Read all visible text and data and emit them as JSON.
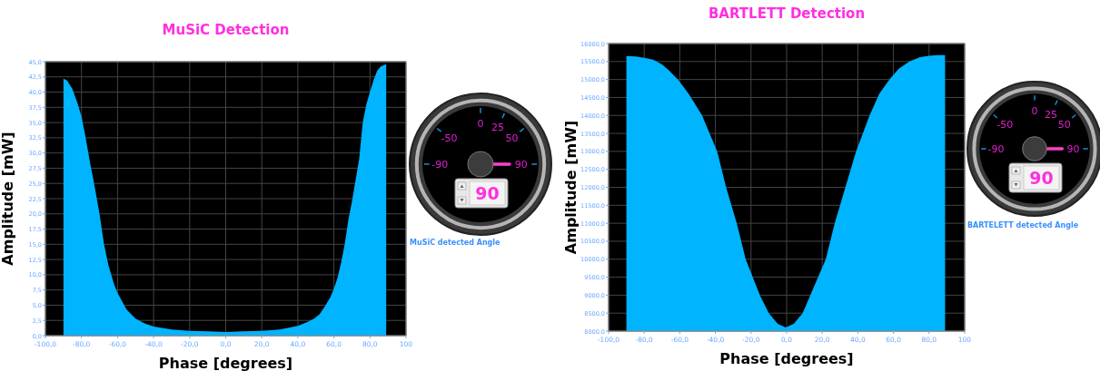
{
  "chart_data": [
    {
      "type": "area",
      "title": "MuSiC Detection",
      "xlabel": "Phase [degrees]",
      "ylabel": "Amplitude [mW]",
      "grid": true,
      "xlim": [
        -100,
        100
      ],
      "xticks": [
        {
          "value": -100,
          "label": "-100,0"
        },
        {
          "value": -80,
          "label": "-80,0"
        },
        {
          "value": -60,
          "label": "-60,0"
        },
        {
          "value": -40,
          "label": "-40,0"
        },
        {
          "value": -20,
          "label": "-20,0"
        },
        {
          "value": 0,
          "label": "0,0"
        },
        {
          "value": 20,
          "label": "20,0"
        },
        {
          "value": 40,
          "label": "40,0"
        },
        {
          "value": 60,
          "label": "60,0"
        },
        {
          "value": 80,
          "label": "80,0"
        },
        100
      ],
      "ylim": [
        0,
        45
      ],
      "yticks": [
        {
          "value": 0,
          "label": "0,0"
        },
        {
          "value": 2.5,
          "label": "2,5"
        },
        {
          "value": 5,
          "label": "5,0"
        },
        {
          "value": 7.5,
          "label": "7,5"
        },
        {
          "value": 10,
          "label": "10,0"
        },
        {
          "value": 12.5,
          "label": "12,5"
        },
        {
          "value": 15,
          "label": "15,0"
        },
        {
          "value": 17.5,
          "label": "17,5"
        },
        {
          "value": 20,
          "label": "20,0"
        },
        {
          "value": 22.5,
          "label": "22,5"
        },
        {
          "value": 25,
          "label": "25,0"
        },
        {
          "value": 27.5,
          "label": "27,5"
        },
        {
          "value": 30,
          "label": "30,0"
        },
        {
          "value": 32.5,
          "label": "32,5"
        },
        {
          "value": 35,
          "label": "35,0"
        },
        {
          "value": 37.5,
          "label": "37,5"
        },
        {
          "value": 40,
          "label": "40,0"
        },
        {
          "value": 42.5,
          "label": "42,5"
        },
        {
          "value": 45,
          "label": "45,0"
        }
      ],
      "series": [
        {
          "color": "#00b4ff",
          "x": [
            -90,
            -88,
            -85,
            -82,
            -80,
            -78,
            -75,
            -73,
            -70,
            -67.5,
            -65,
            -62,
            -60,
            -55,
            -50,
            -45,
            -40,
            -30,
            -20,
            -10,
            0,
            10,
            20,
            30,
            40,
            45,
            49,
            52,
            55,
            58,
            60,
            62,
            64,
            66,
            68,
            70,
            72,
            74,
            76,
            78,
            80,
            82,
            84,
            86,
            89
          ],
          "values": [
            42.2,
            41.9,
            40.5,
            38,
            36,
            33,
            28,
            25,
            20,
            15,
            11.5,
            8.5,
            7,
            4.3,
            2.8,
            2,
            1.5,
            1,
            0.8,
            0.7,
            0.6,
            0.7,
            0.8,
            1,
            1.6,
            2.2,
            2.8,
            3.5,
            4.8,
            6.3,
            7.7,
            9.5,
            12,
            15,
            19,
            22,
            25.5,
            29,
            35,
            38,
            40,
            42,
            43.5,
            44.2,
            44.6
          ]
        }
      ]
    },
    {
      "type": "other",
      "title": "MuSiC detected Angle",
      "annotations": [
        "-90",
        "-50",
        "0",
        "25",
        "50",
        "90",
        "90"
      ]
    },
    {
      "type": "area",
      "title": "BARTLETT Detection",
      "xlabel": "Phase [degrees]",
      "ylabel": "Amplitude [mW]",
      "grid": true,
      "xlim": [
        -100,
        100
      ],
      "xticks": [
        {
          "value": -100,
          "label": "-100,0"
        },
        {
          "value": -80,
          "label": "-80,0"
        },
        {
          "value": -60,
          "label": "-60,0"
        },
        {
          "value": -40,
          "label": "-40,0"
        },
        {
          "value": -20,
          "label": "-20,0"
        },
        {
          "value": 0,
          "label": "0,0"
        },
        {
          "value": 20,
          "label": "20,0"
        },
        {
          "value": 40,
          "label": "40,0"
        },
        {
          "value": 60,
          "label": "60,0"
        },
        {
          "value": 80,
          "label": "80,0"
        },
        100
      ],
      "ylim": [
        8000,
        16000
      ],
      "yticks": [
        {
          "value": 8000,
          "label": "8000,0"
        },
        {
          "value": 8500,
          "label": "8500,0"
        },
        {
          "value": 9000,
          "label": "9000,0"
        },
        {
          "value": 9500,
          "label": "9500,0"
        },
        {
          "value": 10000,
          "label": "10000,0"
        },
        {
          "value": 10500,
          "label": "10500,0"
        },
        {
          "value": 11000,
          "label": "11000,0"
        },
        {
          "value": 11500,
          "label": "11500,0"
        },
        {
          "value": 12000,
          "label": "12000,0"
        },
        {
          "value": 12500,
          "label": "12500,0"
        },
        {
          "value": 13000,
          "label": "13000,0"
        },
        {
          "value": 13500,
          "label": "13500,0"
        },
        {
          "value": 14000,
          "label": "14000,0"
        },
        {
          "value": 14500,
          "label": "14500,0"
        },
        {
          "value": 15000,
          "label": "15000,0"
        },
        {
          "value": 15500,
          "label": "15500,0"
        },
        {
          "value": 16000,
          "label": "16000,0"
        }
      ],
      "series": [
        {
          "color": "#00b4ff",
          "x": [
            -90,
            -85,
            -80,
            -75,
            -70,
            -66,
            -61,
            -55,
            -47.5,
            -39,
            -34,
            -28,
            -23,
            -15,
            -10,
            -5,
            -0.5,
            4,
            9,
            13.3,
            22,
            27,
            33,
            39,
            46.6,
            52,
            57.7,
            63,
            69,
            75,
            80,
            85,
            89
          ],
          "values": [
            15650,
            15640,
            15600,
            15550,
            15420,
            15250,
            15000,
            14600,
            14000,
            13000,
            12000,
            11000,
            10000,
            9000,
            8500,
            8200,
            8100,
            8200,
            8500,
            9000,
            10000,
            11000,
            12000,
            13000,
            14000,
            14600,
            15000,
            15300,
            15500,
            15620,
            15660,
            15680,
            15680
          ]
        }
      ]
    },
    {
      "type": "other",
      "title": "BARTELETT detected Angle",
      "annotations": [
        "-90",
        "-50",
        "0",
        "25",
        "50",
        "90",
        "90"
      ]
    }
  ]
}
